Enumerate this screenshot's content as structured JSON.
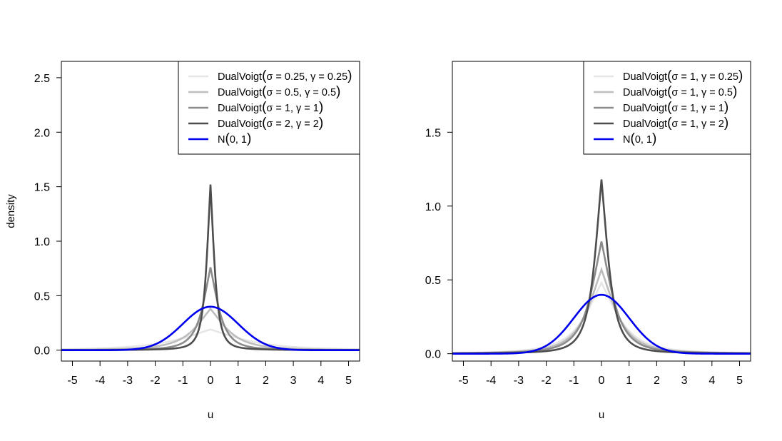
{
  "chart_data": [
    {
      "type": "line",
      "xlabel": "u",
      "ylabel": "density",
      "xlim": [
        -5.4,
        5.4
      ],
      "ylim": [
        -0.1,
        2.65
      ],
      "xticks": [
        "-5",
        "-4",
        "-3",
        "-2",
        "-1",
        "0",
        "1",
        "2",
        "3",
        "4",
        "5"
      ],
      "yticks": [
        "0.0",
        "0.5",
        "1.0",
        "1.5",
        "2.0",
        "2.5"
      ],
      "legend_position": "top-right",
      "legend": [
        {
          "prefix": "DualVoigt",
          "args": "σ = 0.25, γ = 0.25",
          "color": "#e6e6e6"
        },
        {
          "prefix": "DualVoigt",
          "args": "σ = 0.5, γ = 0.5",
          "color": "#bdbdbd"
        },
        {
          "prefix": "DualVoigt",
          "args": "σ = 1, γ = 1",
          "color": "#8c8c8c"
        },
        {
          "prefix": "DualVoigt",
          "args": "σ = 2, γ = 2",
          "color": "#4d4d4d"
        },
        {
          "prefix": "N",
          "args": "0, 1",
          "color": "#0000ee"
        }
      ],
      "series": [
        {
          "dist": "dualvoigt",
          "color": "#e6e6e6",
          "peak": 0.19,
          "scale": 1.6,
          "min_x": -5.4,
          "max_x": 5.4
        },
        {
          "dist": "dualvoigt",
          "color": "#bdbdbd",
          "peak": 0.38,
          "scale": 0.8,
          "min_x": -5.4,
          "max_x": 5.4
        },
        {
          "dist": "dualvoigt",
          "color": "#8c8c8c",
          "peak": 0.76,
          "scale": 0.4,
          "min_x": -5.4,
          "max_x": 5.4
        },
        {
          "dist": "dualvoigt",
          "color": "#4d4d4d",
          "peak": 1.52,
          "scale": 0.2,
          "min_x": -5.4,
          "max_x": 5.4
        },
        {
          "dist": "normal",
          "color": "#0000ee",
          "peak": 0.3989,
          "scale": 1.0,
          "min_x": -5.4,
          "max_x": 5.4
        }
      ]
    },
    {
      "type": "line",
      "xlabel": "u",
      "ylabel": "",
      "xlim": [
        -5.4,
        5.4
      ],
      "ylim": [
        -0.05,
        1.98
      ],
      "xticks": [
        "-5",
        "-4",
        "-3",
        "-2",
        "-1",
        "0",
        "1",
        "2",
        "3",
        "4",
        "5"
      ],
      "yticks": [
        "0.0",
        "0.5",
        "1.0",
        "1.5"
      ],
      "legend_position": "top-right",
      "legend": [
        {
          "prefix": "DualVoigt",
          "args": "σ = 1, γ = 0.25",
          "color": "#e6e6e6"
        },
        {
          "prefix": "DualVoigt",
          "args": "σ = 1, γ = 0.5",
          "color": "#bdbdbd"
        },
        {
          "prefix": "DualVoigt",
          "args": "σ = 1, γ = 1",
          "color": "#8c8c8c"
        },
        {
          "prefix": "DualVoigt",
          "args": "σ = 1, γ = 2",
          "color": "#4d4d4d"
        },
        {
          "prefix": "N",
          "args": "0, 1",
          "color": "#0000ee"
        }
      ],
      "series": [
        {
          "dist": "dualvoigt",
          "color": "#e6e6e6",
          "peak": 0.48,
          "scale": 0.85,
          "min_x": -5.4,
          "max_x": 5.4
        },
        {
          "dist": "dualvoigt",
          "color": "#bdbdbd",
          "peak": 0.57,
          "scale": 0.7,
          "min_x": -5.4,
          "max_x": 5.4
        },
        {
          "dist": "dualvoigt",
          "color": "#8c8c8c",
          "peak": 0.76,
          "scale": 0.55,
          "min_x": -5.4,
          "max_x": 5.4
        },
        {
          "dist": "dualvoigt",
          "color": "#4d4d4d",
          "peak": 1.18,
          "scale": 0.36,
          "min_x": -5.4,
          "max_x": 5.4
        },
        {
          "dist": "normal",
          "color": "#0000ee",
          "peak": 0.3989,
          "scale": 1.0,
          "min_x": -5.4,
          "max_x": 5.4
        }
      ]
    }
  ]
}
